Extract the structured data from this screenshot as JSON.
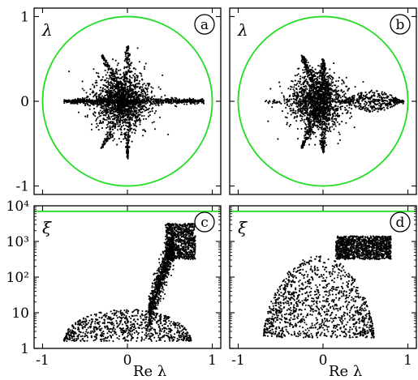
{
  "colors": {
    "reference_curve": "#22dd22",
    "points": "#000000",
    "frame": "#000000"
  },
  "chart_data": [
    {
      "id": "a",
      "type": "scatter",
      "panel_label": "a",
      "symbol": "λ",
      "xlabel": "",
      "ylabel": "",
      "xlim": [
        -1.1,
        1.1
      ],
      "ylim": [
        -1.1,
        1.1
      ],
      "y_tick_labels": [
        "-1",
        "0",
        "1"
      ],
      "y_tick_values": [
        -1,
        0,
        1
      ],
      "x_tick_values": [
        -1,
        0,
        1
      ],
      "x_tick_labels": [],
      "reference": {
        "type": "unit-circle",
        "radius": 1
      },
      "cloud": {
        "shape": "star",
        "x_extent": [
          -0.75,
          0.9
        ],
        "y_extent": [
          -0.7,
          0.65
        ],
        "spikes": [
          {
            "x": -0.3,
            "y": 0.55
          },
          {
            "x": 0.0,
            "y": 0.65
          },
          {
            "x": -0.3,
            "y": -0.55
          },
          {
            "x": 0.0,
            "y": -0.68
          },
          {
            "x": 0.85,
            "y": 0.0
          },
          {
            "x": -0.7,
            "y": 0.0
          }
        ]
      }
    },
    {
      "id": "b",
      "type": "scatter",
      "panel_label": "b",
      "symbol": "λ",
      "xlabel": "",
      "ylabel": "",
      "xlim": [
        -1.1,
        1.1
      ],
      "ylim": [
        -1.1,
        1.1
      ],
      "y_tick_labels": [],
      "y_tick_values": [
        -1,
        0,
        1
      ],
      "x_tick_values": [
        -1,
        0,
        1
      ],
      "x_tick_labels": [],
      "reference": {
        "type": "unit-circle",
        "radius": 1
      },
      "cloud": {
        "shape": "star-with-lobe",
        "x_extent": [
          -0.7,
          0.95
        ],
        "y_extent": [
          -0.6,
          0.55
        ],
        "lobe": {
          "x_range": [
            0.25,
            0.95
          ],
          "half_height": 0.12
        },
        "spikes": [
          {
            "x": -0.25,
            "y": 0.55
          },
          {
            "x": 0.0,
            "y": 0.5
          },
          {
            "x": -0.25,
            "y": -0.55
          },
          {
            "x": 0.0,
            "y": -0.6
          }
        ]
      }
    },
    {
      "id": "c",
      "type": "scatter",
      "panel_label": "c",
      "symbol": "ξ",
      "xlabel": "Re λ",
      "ylabel": "",
      "xlim": [
        -1.1,
        1.1
      ],
      "ylim": [
        1,
        10000
      ],
      "yscale": "log",
      "y_tick_labels": [
        "1",
        "10",
        "10²",
        "10³",
        "10⁴"
      ],
      "y_tick_values": [
        1,
        10,
        100,
        1000,
        10000
      ],
      "x_tick_labels": [
        "-1",
        "0",
        "1"
      ],
      "x_tick_values": [
        -1,
        0,
        1
      ],
      "reference": {
        "type": "horizontal-line",
        "y": 7000
      },
      "cloud": {
        "regions": [
          {
            "x_range": [
              -0.75,
              0.75
            ],
            "y_log_range": [
              0.2,
              1.1
            ],
            "shape": "dome"
          },
          {
            "x_range": [
              0.25,
              0.55
            ],
            "y_log_range": [
              1.0,
              3.0
            ],
            "shape": "bridge"
          },
          {
            "x_range": [
              0.45,
              0.8
            ],
            "y_log_range": [
              2.5,
              3.5
            ],
            "shape": "block"
          }
        ]
      }
    },
    {
      "id": "d",
      "type": "scatter",
      "panel_label": "d",
      "symbol": "ξ",
      "xlabel": "Re λ",
      "ylabel": "",
      "xlim": [
        -1.1,
        1.1
      ],
      "ylim": [
        1,
        10000
      ],
      "yscale": "log",
      "y_tick_labels": [],
      "y_tick_values": [
        1,
        10,
        100,
        1000,
        10000
      ],
      "x_tick_labels": [
        "-1",
        "0",
        "1"
      ],
      "x_tick_values": [
        -1,
        0,
        1
      ],
      "reference": {
        "type": "horizontal-line",
        "y": 7000
      },
      "cloud": {
        "regions": [
          {
            "x_range": [
              -0.7,
              0.6
            ],
            "y_log_range": [
              0.3,
              2.6
            ],
            "shape": "mountain"
          },
          {
            "x_range": [
              0.15,
              0.8
            ],
            "y_log_range": [
              2.5,
              3.15
            ],
            "shape": "plateau"
          }
        ]
      }
    }
  ]
}
